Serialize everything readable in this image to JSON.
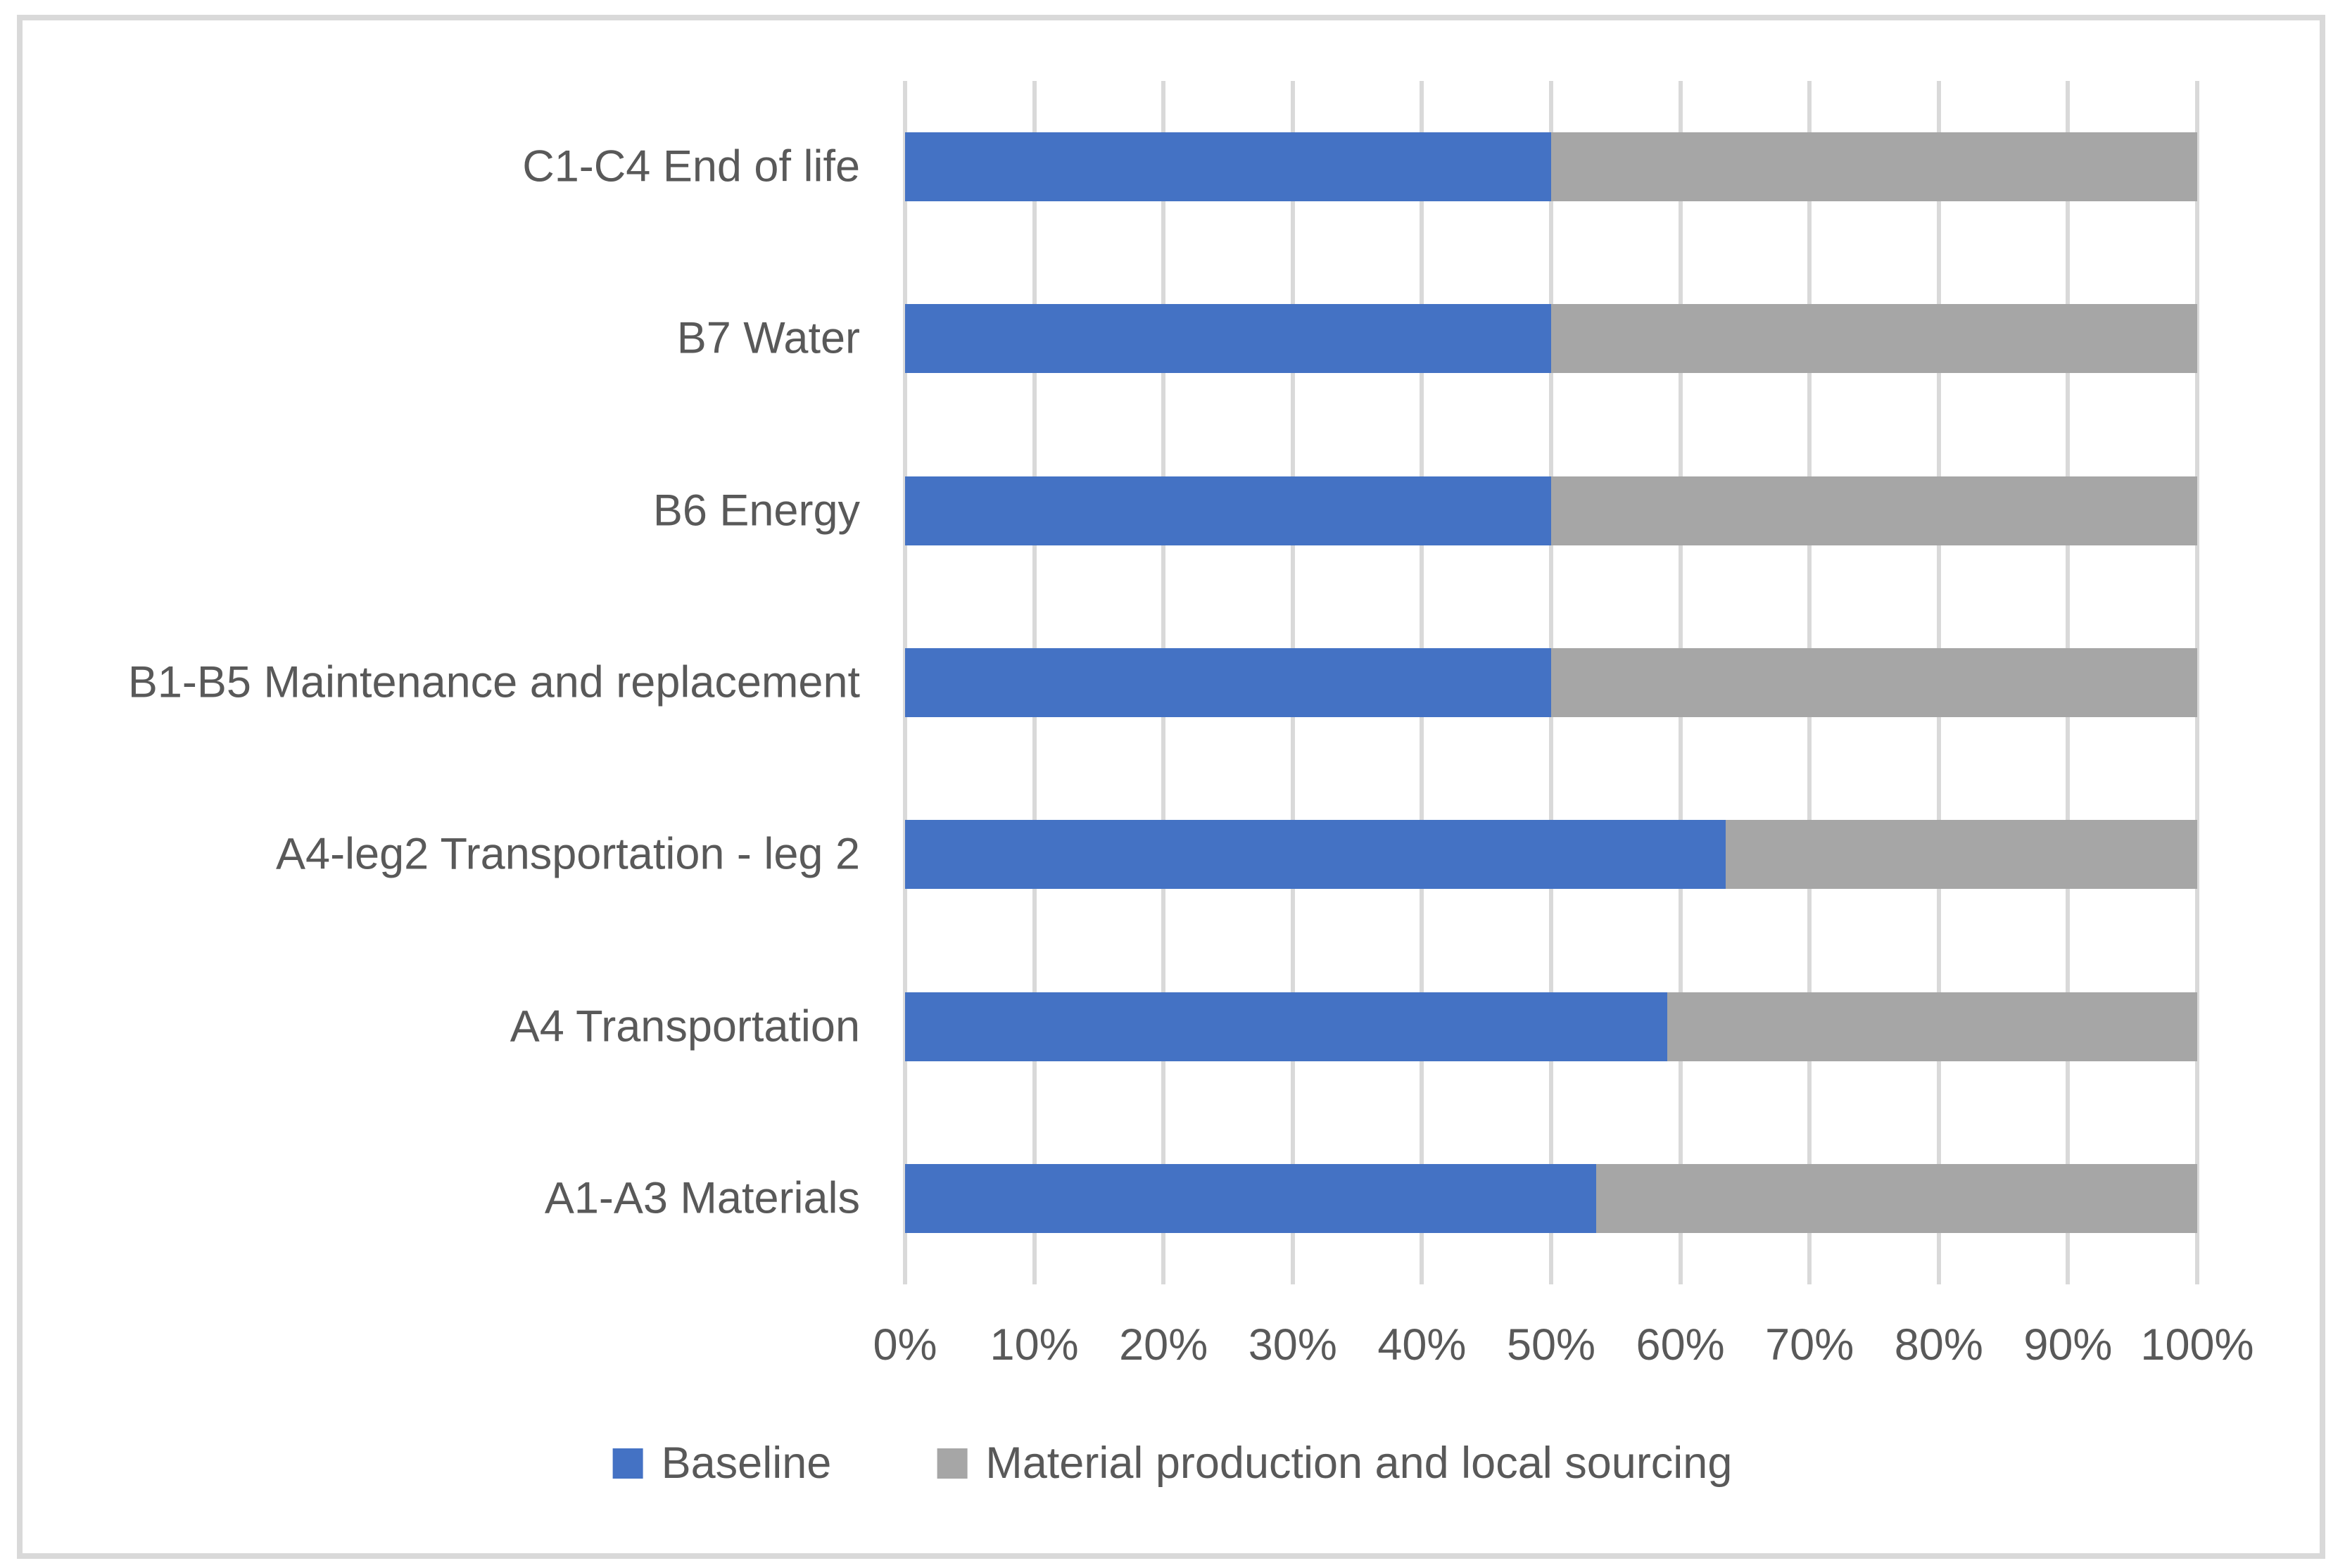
{
  "chart_data": {
    "type": "bar",
    "orientation": "horizontal",
    "stacked": "percent",
    "title": "",
    "xlabel": "",
    "ylabel": "",
    "grid": true,
    "legend_position": "bottom",
    "categories": [
      "C1-C4 End of life",
      "B7 Water",
      "B6 Energy",
      "B1-B5 Maintenance and replacement",
      "A4-leg2 Transportation - leg 2",
      "A4 Transportation",
      "A1-A3 Materials"
    ],
    "series": [
      {
        "name": "Baseline",
        "color": "#4472C4",
        "values": [
          50,
          50,
          50,
          50,
          63.5,
          59,
          53.5
        ]
      },
      {
        "name": "Material production and local sourcing",
        "color": "#A6A6A6",
        "values": [
          50,
          50,
          50,
          50,
          36.5,
          41,
          46.5
        ]
      }
    ],
    "x_axis": {
      "min": 0,
      "max": 100,
      "tick_step": 10,
      "tick_labels": [
        "0%",
        "10%",
        "20%",
        "30%",
        "40%",
        "50%",
        "60%",
        "70%",
        "80%",
        "90%",
        "100%"
      ]
    }
  },
  "colors": {
    "background": "#FFFFFF",
    "gridline": "#D9D9D9",
    "frame_border": "#D9D9D9",
    "text": "#595959"
  }
}
